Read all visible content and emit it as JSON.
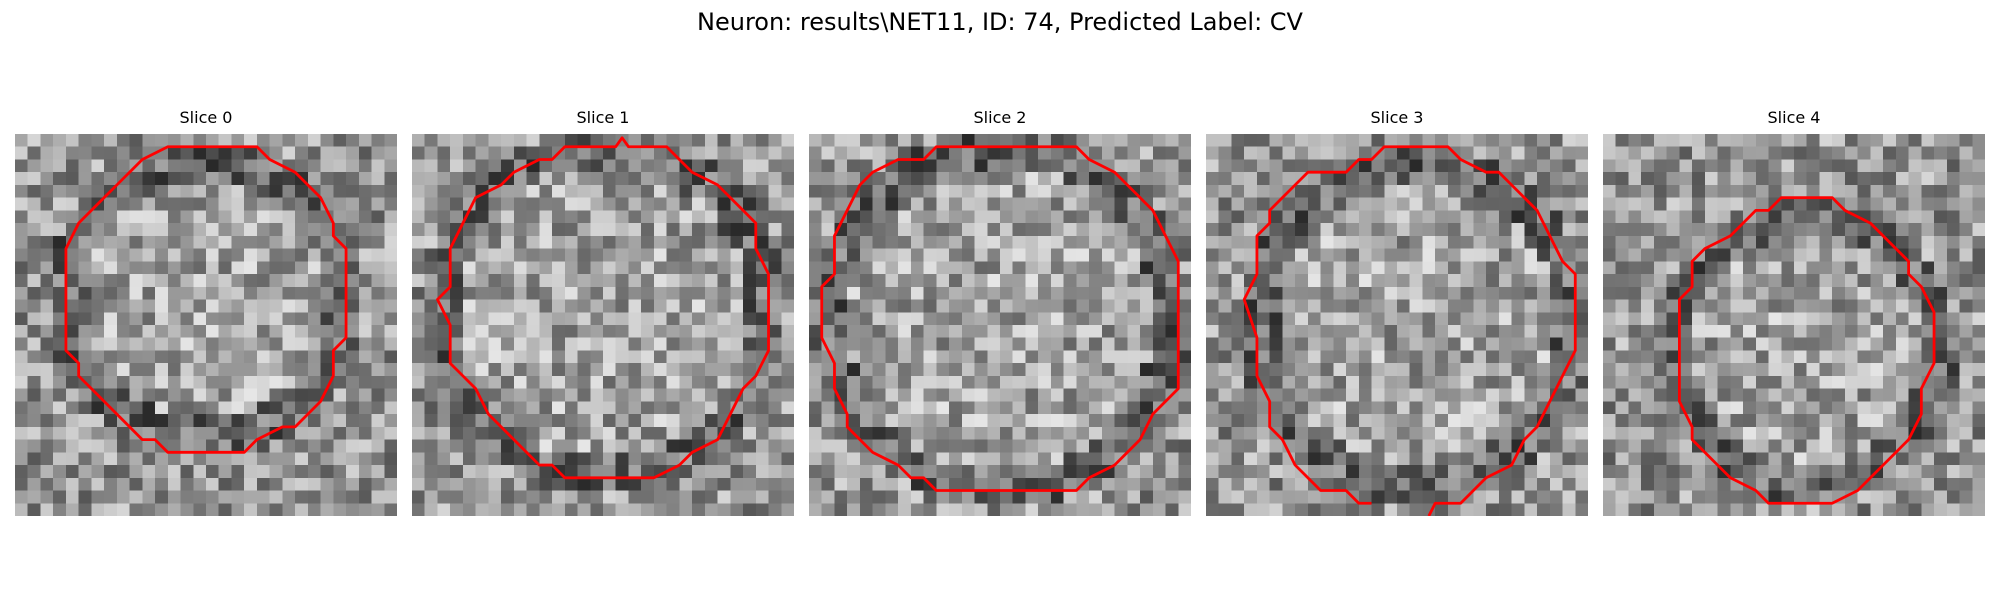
{
  "figure": {
    "title": "Neuron: results\\NET11, ID: 74, Predicted Label: CV",
    "contour_color": "#ff0000",
    "colormap": "gray"
  },
  "slices": [
    {
      "title": "Slice 0"
    },
    {
      "title": "Slice 1"
    },
    {
      "title": "Slice 2"
    },
    {
      "title": "Slice 3"
    },
    {
      "title": "Slice 4"
    }
  ]
}
